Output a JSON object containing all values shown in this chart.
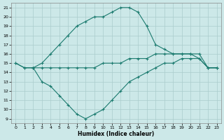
{
  "xlabel": "Humidex (Indice chaleur)",
  "x_ticks": [
    0,
    1,
    2,
    3,
    4,
    5,
    6,
    7,
    8,
    9,
    10,
    11,
    12,
    13,
    14,
    15,
    16,
    17,
    18,
    19,
    20,
    21,
    22,
    23
  ],
  "ylim": [
    8.5,
    21.5
  ],
  "xlim": [
    -0.5,
    23.5
  ],
  "yticks": [
    9,
    10,
    11,
    12,
    13,
    14,
    15,
    16,
    17,
    18,
    19,
    20,
    21
  ],
  "bg_color": "#cce8e8",
  "grid_color": "#aacccc",
  "line_color": "#1a7a6e",
  "curve1_x": [
    0,
    1,
    2,
    3,
    4,
    5,
    6,
    7,
    8,
    9,
    10,
    11,
    12,
    13,
    14,
    15,
    16,
    17,
    18,
    19,
    20,
    21,
    22,
    23
  ],
  "curve1_y": [
    15.0,
    14.5,
    14.5,
    15.0,
    16.0,
    17.0,
    18.0,
    19.0,
    19.5,
    20.0,
    20.0,
    20.5,
    21.0,
    21.0,
    20.5,
    19.0,
    17.0,
    16.5,
    16.0,
    16.0,
    16.0,
    15.5,
    14.5,
    14.5
  ],
  "curve2_x": [
    0,
    1,
    2,
    3,
    4,
    5,
    6,
    7,
    8,
    9,
    10,
    11,
    12,
    13,
    14,
    15,
    16,
    17,
    18,
    19,
    20,
    21,
    22,
    23
  ],
  "curve2_y": [
    15.0,
    14.5,
    14.5,
    14.5,
    14.5,
    14.5,
    14.5,
    14.5,
    14.5,
    14.5,
    15.0,
    15.0,
    15.0,
    15.5,
    15.5,
    15.5,
    16.0,
    16.0,
    16.0,
    16.0,
    16.0,
    16.0,
    14.5,
    14.5
  ],
  "curve3_x": [
    2,
    3,
    4,
    5,
    6,
    7,
    8,
    9,
    10,
    11,
    12,
    13,
    14,
    15,
    16,
    17,
    18,
    19,
    20,
    21,
    22,
    23
  ],
  "curve3_y": [
    14.5,
    13.0,
    12.5,
    11.5,
    10.5,
    9.5,
    9.0,
    9.5,
    10.0,
    11.0,
    12.0,
    13.0,
    13.5,
    14.0,
    14.5,
    15.0,
    15.0,
    15.5,
    15.5,
    15.5,
    14.5,
    14.5
  ]
}
